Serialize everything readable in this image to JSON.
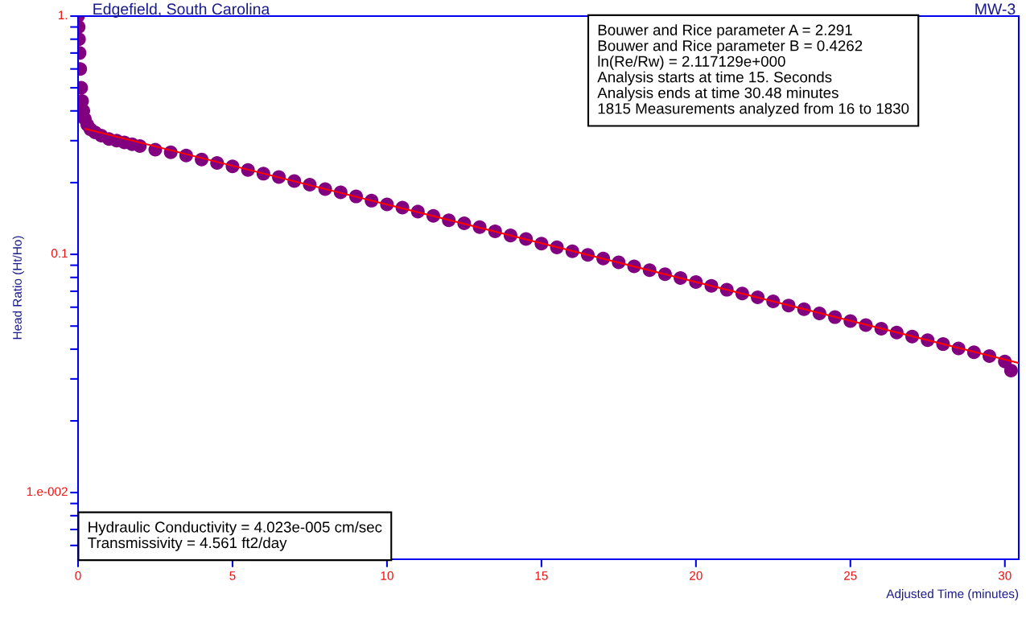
{
  "chart_data": {
    "type": "scatter",
    "title": "Edgefield, South Carolina",
    "subtitle": "MW-3",
    "xlabel": "Adjusted Time (minutes)",
    "ylabel": "Head Ratio (Ht/Ho)",
    "log": "y",
    "grid": false,
    "legend": false,
    "marker": "circle",
    "annotations": [
      "Bouwer and Rice parameter A = 2.291\nBouwer and Rice parameter B = 0.4262\nln(Re/Rw) = 2.117129e+000\nAnalysis starts at time 15. Seconds\nAnalysis ends at time 30.48 minutes\n1815 Measurements analyzed from 16 to 1830",
      "Hydraulic Conductivity = 4.023e-005 cm/sec\nTransmissivity = 4.561 ft2/day"
    ],
    "xlim": [
      0,
      30.45
    ],
    "ylim": [
      0.00525,
      1
    ],
    "xticks": [
      0,
      5,
      10,
      15,
      20,
      25,
      30
    ],
    "yticks": [
      {
        "value": 1,
        "label": "1."
      },
      {
        "value": 0.9,
        "label": null
      },
      {
        "value": 0.8,
        "label": null
      },
      {
        "value": 0.7,
        "label": null
      },
      {
        "value": 0.6,
        "label": null
      },
      {
        "value": 0.5,
        "label": null
      },
      {
        "value": 0.4,
        "label": null
      },
      {
        "value": 0.3,
        "label": null
      },
      {
        "value": 0.2,
        "label": null
      },
      {
        "value": 0.1,
        "label": "0.1"
      },
      {
        "value": 0.09,
        "label": null
      },
      {
        "value": 0.08,
        "label": null
      },
      {
        "value": 0.07,
        "label": null
      },
      {
        "value": 0.06,
        "label": null
      },
      {
        "value": 0.05,
        "label": null
      },
      {
        "value": 0.04,
        "label": null
      },
      {
        "value": 0.03,
        "label": null
      },
      {
        "value": 0.02,
        "label": null
      },
      {
        "value": 0.01,
        "label": "1.e-002"
      },
      {
        "value": 0.009,
        "label": null
      },
      {
        "value": 0.008,
        "label": null
      },
      {
        "value": 0.007,
        "label": null
      },
      {
        "value": 0.006,
        "label": null
      }
    ],
    "series": [
      {
        "color": "#800080",
        "x": [
          0,
          0.02,
          0.03,
          0.05,
          0.07,
          0.1,
          0.13,
          0.17,
          0.22,
          0.3,
          0.4,
          0.55,
          0.75,
          1,
          1.25,
          1.5,
          1.75,
          2,
          2.5,
          3,
          3.5,
          4,
          4.5,
          5,
          5.5,
          6,
          6.5,
          7,
          7.5,
          8,
          8.5,
          9,
          9.5,
          10,
          10.5,
          11,
          11.5,
          12,
          12.5,
          13,
          13.5,
          14,
          14.5,
          15,
          15.5,
          16,
          16.5,
          17,
          17.5,
          18,
          18.5,
          19,
          19.5,
          20,
          20.5,
          21,
          21.5,
          22,
          22.5,
          23,
          23.5,
          24,
          24.5,
          25,
          25.5,
          26,
          26.5,
          27,
          27.5,
          28,
          28.5,
          29,
          29.5,
          30,
          30.2
        ],
        "values": [
          1.0,
          0.9,
          0.8,
          0.7,
          0.6,
          0.5,
          0.44,
          0.4,
          0.37,
          0.35,
          0.335,
          0.325,
          0.315,
          0.305,
          0.3,
          0.295,
          0.29,
          0.285,
          0.275,
          0.268,
          0.26,
          0.25,
          0.242,
          0.234,
          0.226,
          0.218,
          0.211,
          0.203,
          0.196,
          0.188,
          0.182,
          0.175,
          0.168,
          0.162,
          0.157,
          0.151,
          0.145,
          0.139,
          0.135,
          0.13,
          0.125,
          0.12,
          0.116,
          0.111,
          0.107,
          0.103,
          0.0995,
          0.096,
          0.0925,
          0.089,
          0.0858,
          0.0825,
          0.0795,
          0.0765,
          0.0738,
          0.071,
          0.0685,
          0.066,
          0.0635,
          0.061,
          0.0588,
          0.0565,
          0.0545,
          0.0525,
          0.0505,
          0.0487,
          0.047,
          0.0452,
          0.0436,
          0.042,
          0.0403,
          0.0388,
          0.0374,
          0.0355,
          0.0325
        ]
      },
      {
        "type": "line",
        "marker": "none",
        "color": "#ff0000",
        "x": [
          0.25,
          30.45
        ],
        "values": [
          0.336,
          0.035
        ]
      }
    ]
  }
}
